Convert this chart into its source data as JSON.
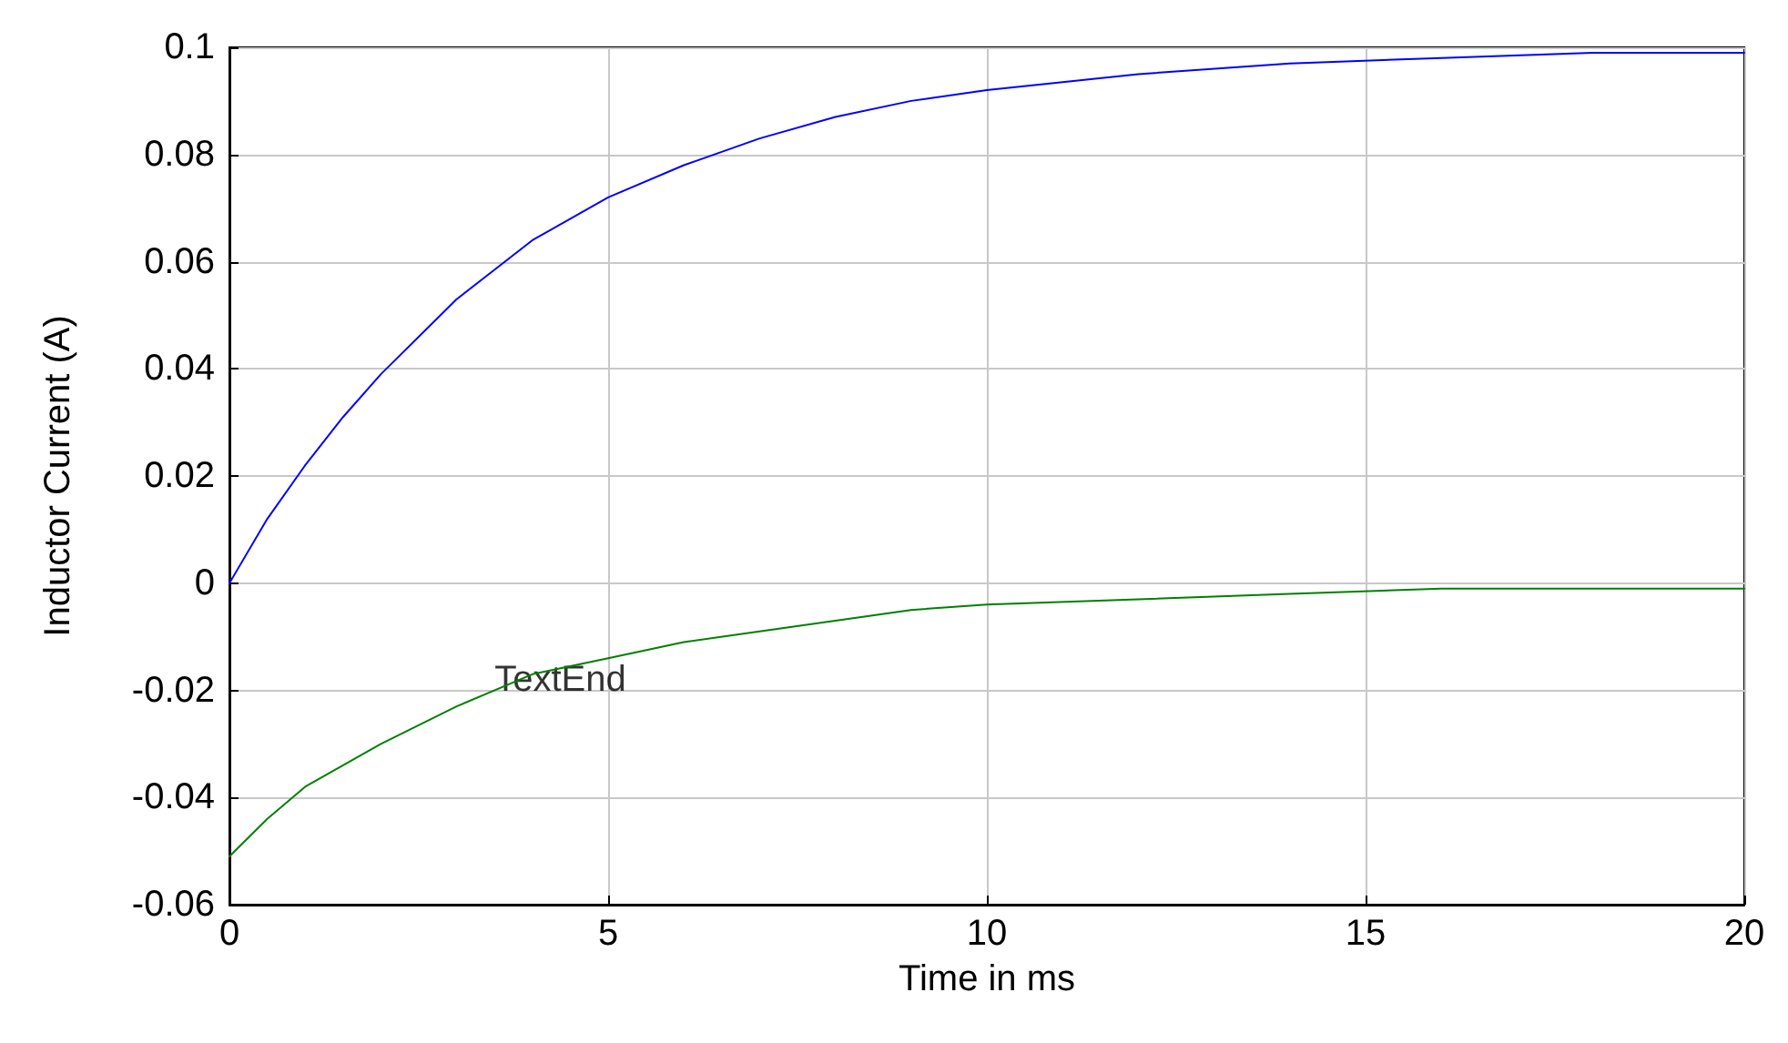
{
  "chart_data": {
    "type": "line",
    "xlabel": "Time in ms",
    "ylabel": "Inductor Current (A)",
    "xlim": [
      0,
      20
    ],
    "xticks": [
      0,
      5,
      10,
      15,
      20
    ],
    "ylim": [
      -0.06,
      0.1
    ],
    "yticks": [
      -0.06,
      -0.04,
      -0.02,
      0,
      0.02,
      0.04,
      0.06,
      0.08,
      0.1
    ],
    "grid": true,
    "marker": "none",
    "line_style": "solid",
    "annotations": [
      {
        "text": "TextEnd",
        "x": 3.5,
        "y": -0.018
      }
    ],
    "series": [
      {
        "color": "#0000ff",
        "x": [
          0,
          0.5,
          1,
          1.5,
          2,
          3,
          4,
          5,
          6,
          7,
          8,
          9,
          10,
          12,
          14,
          16,
          18,
          20
        ],
        "values": [
          0,
          0.012,
          0.022,
          0.031,
          0.039,
          0.053,
          0.064,
          0.072,
          0.078,
          0.083,
          0.087,
          0.09,
          0.092,
          0.095,
          0.097,
          0.098,
          0.099,
          0.099
        ]
      },
      {
        "color": "#008000",
        "x": [
          0,
          0.5,
          1,
          1.5,
          2,
          3,
          4,
          5,
          6,
          7,
          8,
          9,
          10,
          12,
          14,
          16,
          18,
          20
        ],
        "values": [
          -0.051,
          -0.044,
          -0.038,
          -0.034,
          -0.03,
          -0.023,
          -0.017,
          -0.014,
          -0.011,
          -0.009,
          -0.007,
          -0.005,
          -0.004,
          -0.003,
          -0.002,
          -0.001,
          -0.001,
          -0.001
        ]
      }
    ]
  }
}
